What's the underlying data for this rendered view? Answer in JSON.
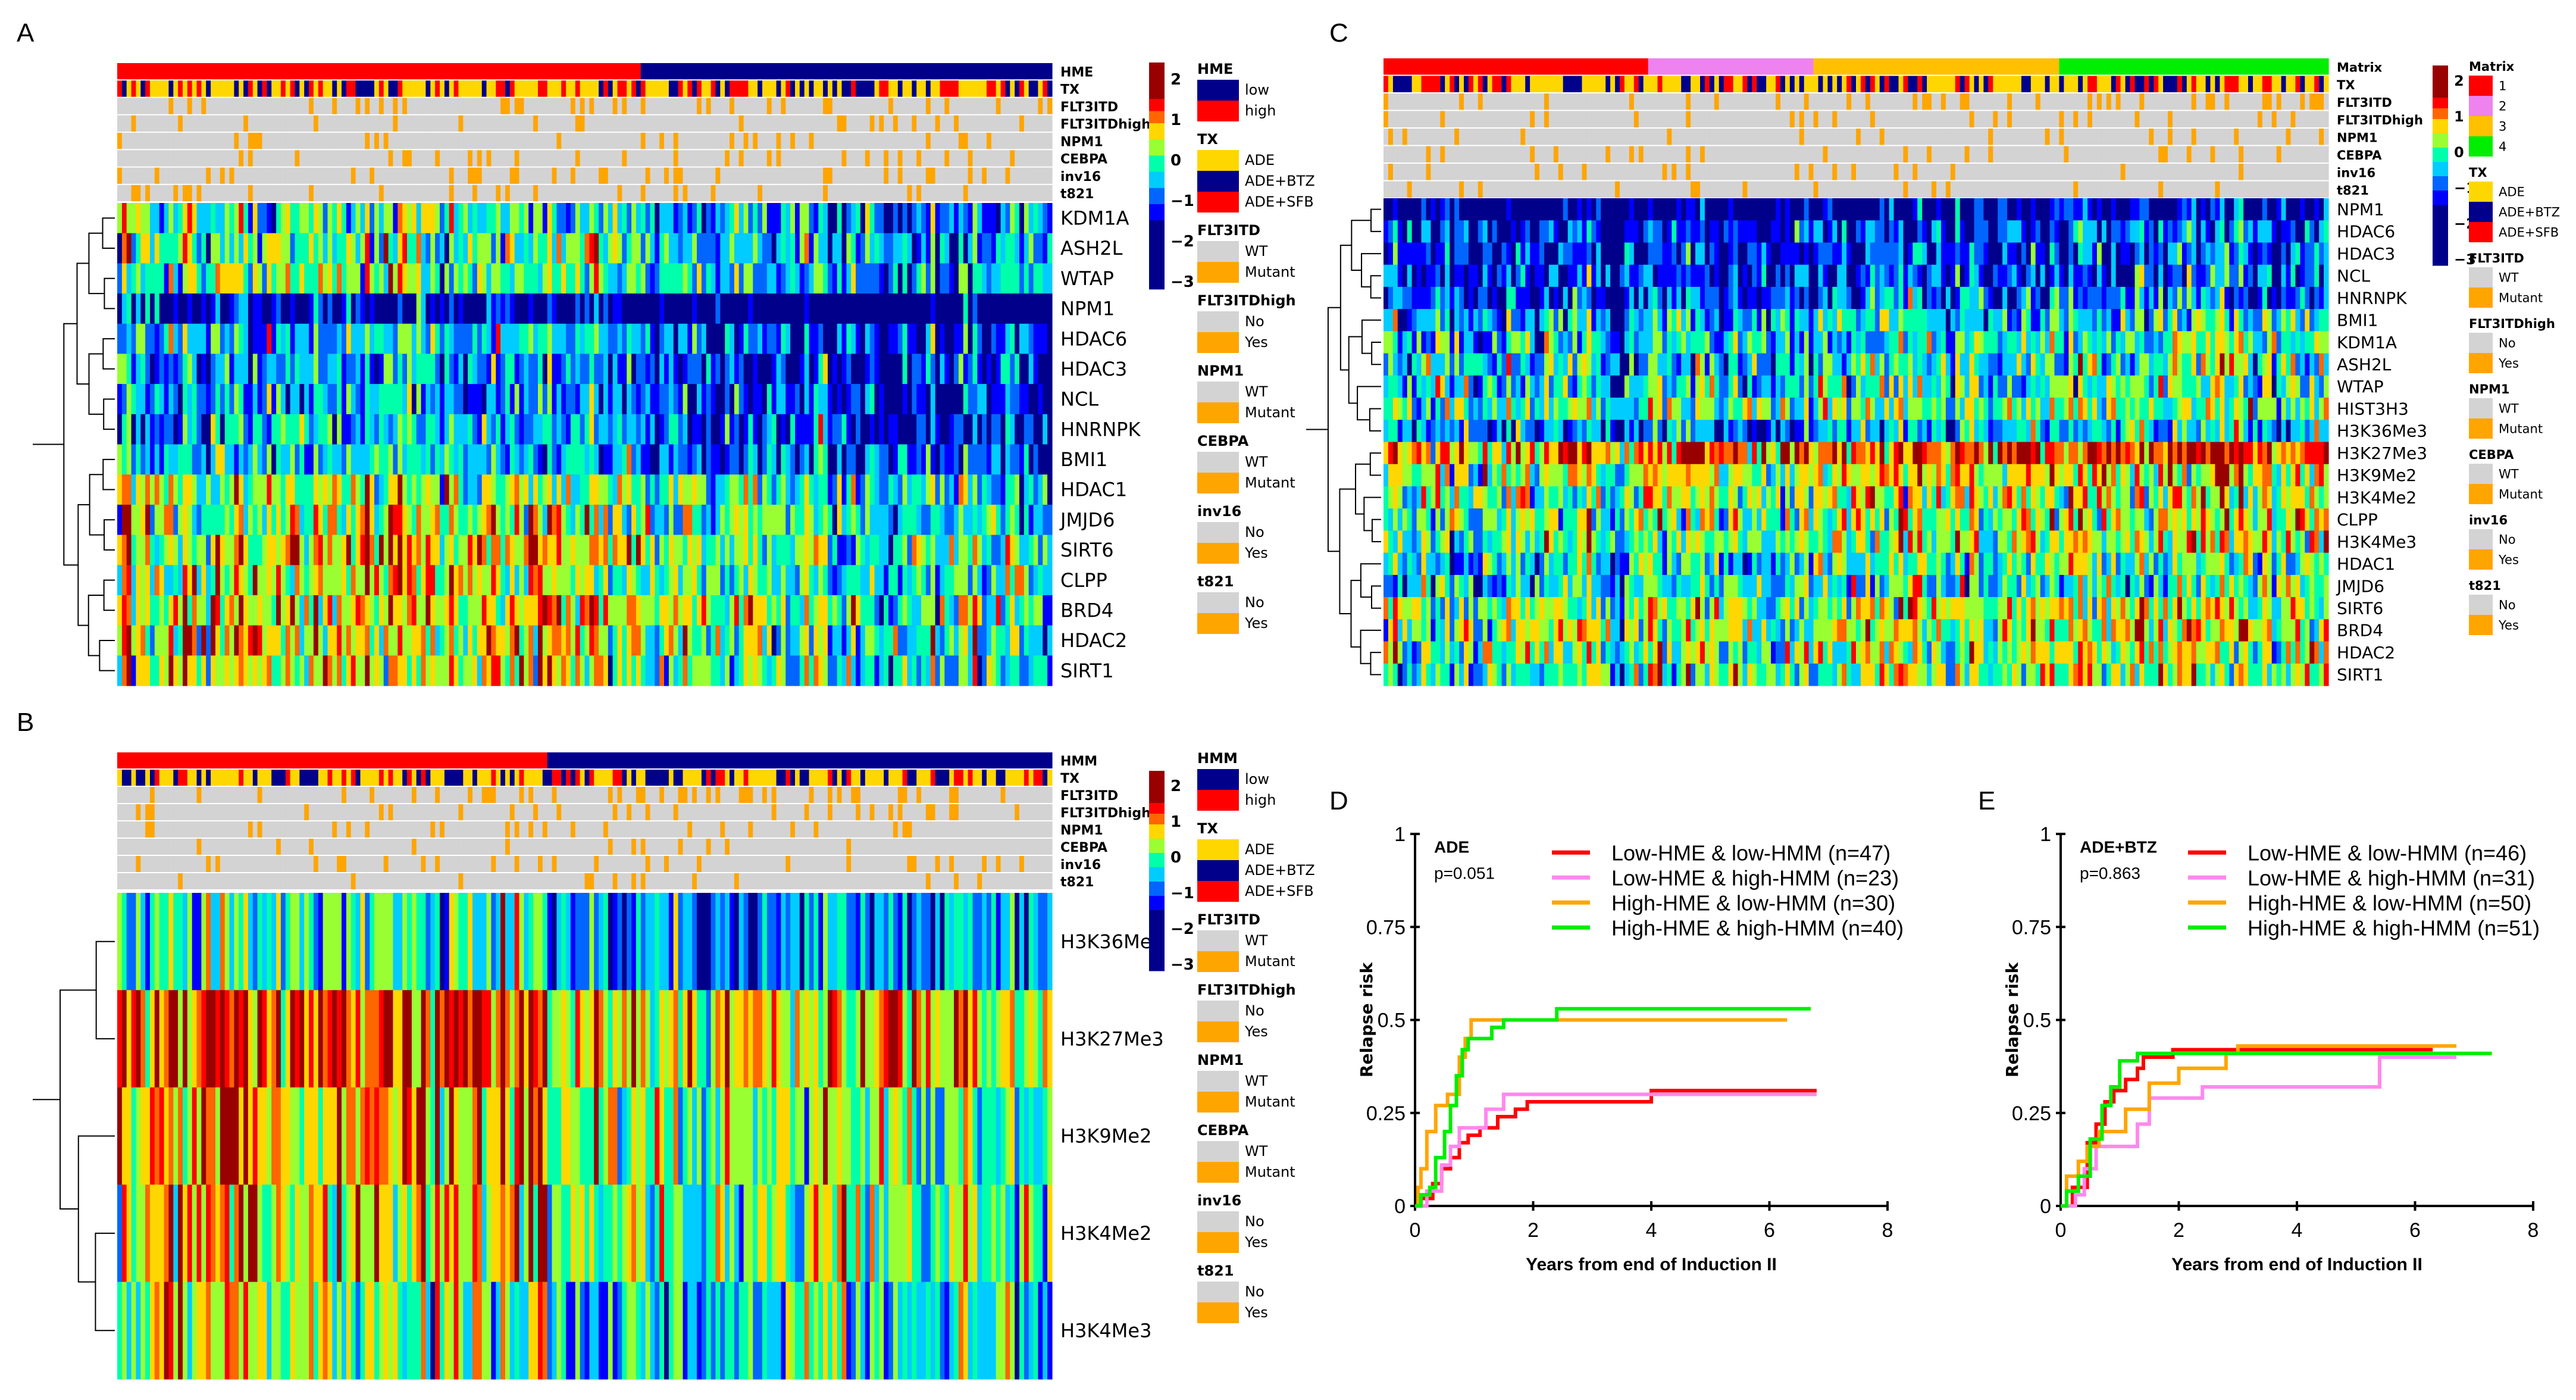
{
  "panels": {
    "A": "A",
    "B": "B",
    "C": "C",
    "D": "D",
    "E": "E"
  },
  "heatmap_colors": [
    "#00008B",
    "#0000FF",
    "#0066FF",
    "#00CCFF",
    "#00FFAA",
    "#99FF33",
    "#FFD700",
    "#FF6600",
    "#FF0000",
    "#990000"
  ],
  "colorscale_ticks": [
    "2",
    "1",
    "0",
    "−1",
    "−2",
    "−3"
  ],
  "chart_data": [
    {
      "type": "heatmap",
      "panel": "A",
      "tracks": [
        "HME",
        "TX",
        "FLT3ITD",
        "FLT3ITDhigh",
        "NPM1",
        "CEBPA",
        "inv16",
        "t821"
      ],
      "group_fraction_high": 0.56,
      "rows": [
        "KDM1A",
        "ASH2L",
        "WTAP",
        "NPM1",
        "HDAC6",
        "HDAC3",
        "NCL",
        "HNRNPK",
        "BMI1",
        "HDAC1",
        "JMJD6",
        "SIRT6",
        "CLPP",
        "BRD4",
        "HDAC2",
        "SIRT1"
      ],
      "row_mean": [
        -0.4,
        -0.3,
        -0.3,
        -1.8,
        -0.8,
        -1.0,
        -1.0,
        -0.9,
        -0.7,
        0.0,
        0.0,
        0.3,
        0.1,
        0.3,
        0.2,
        0.1
      ],
      "legend": [
        {
          "title": "HME",
          "items": [
            {
              "label": "low",
              "color": "#00008B"
            },
            {
              "label": "high",
              "color": "#FF0000"
            }
          ]
        },
        {
          "title": "TX",
          "items": [
            {
              "label": "ADE",
              "color": "#FFD700"
            },
            {
              "label": "ADE+BTZ",
              "color": "#00008B"
            },
            {
              "label": "ADE+SFB",
              "color": "#FF0000"
            }
          ]
        },
        {
          "title": "FLT3ITD",
          "items": [
            {
              "label": "WT",
              "color": "#D3D3D3"
            },
            {
              "label": "Mutant",
              "color": "#FFA500"
            }
          ]
        },
        {
          "title": "FLT3ITDhigh",
          "items": [
            {
              "label": "No",
              "color": "#D3D3D3"
            },
            {
              "label": "Yes",
              "color": "#FFA500"
            }
          ]
        },
        {
          "title": "NPM1",
          "items": [
            {
              "label": "WT",
              "color": "#D3D3D3"
            },
            {
              "label": "Mutant",
              "color": "#FFA500"
            }
          ]
        },
        {
          "title": "CEBPA",
          "items": [
            {
              "label": "WT",
              "color": "#D3D3D3"
            },
            {
              "label": "Mutant",
              "color": "#FFA500"
            }
          ]
        },
        {
          "title": "inv16",
          "items": [
            {
              "label": "No",
              "color": "#D3D3D3"
            },
            {
              "label": "Yes",
              "color": "#FFA500"
            }
          ]
        },
        {
          "title": "t821",
          "items": [
            {
              "label": "No",
              "color": "#D3D3D3"
            },
            {
              "label": "Yes",
              "color": "#FFA500"
            }
          ]
        }
      ]
    },
    {
      "type": "heatmap",
      "panel": "B",
      "tracks": [
        "HMM",
        "TX",
        "FLT3ITD",
        "FLT3ITDhigh",
        "NPM1",
        "CEBPA",
        "inv16",
        "t821"
      ],
      "group_fraction_high": 0.46,
      "rows": [
        "H3K36Me3",
        "H3K27Me3",
        "H3K9Me2",
        "H3K4Me2",
        "H3K4Me3"
      ],
      "row_mean": [
        -0.5,
        1.0,
        0.5,
        0.5,
        0.0
      ],
      "legend": [
        {
          "title": "HMM",
          "items": [
            {
              "label": "low",
              "color": "#00008B"
            },
            {
              "label": "high",
              "color": "#FF0000"
            }
          ]
        },
        {
          "title": "TX",
          "items": [
            {
              "label": "ADE",
              "color": "#FFD700"
            },
            {
              "label": "ADE+BTZ",
              "color": "#00008B"
            },
            {
              "label": "ADE+SFB",
              "color": "#FF0000"
            }
          ]
        },
        {
          "title": "FLT3ITD",
          "items": [
            {
              "label": "WT",
              "color": "#D3D3D3"
            },
            {
              "label": "Mutant",
              "color": "#FFA500"
            }
          ]
        },
        {
          "title": "FLT3ITDhigh",
          "items": [
            {
              "label": "No",
              "color": "#D3D3D3"
            },
            {
              "label": "Yes",
              "color": "#FFA500"
            }
          ]
        },
        {
          "title": "NPM1",
          "items": [
            {
              "label": "WT",
              "color": "#D3D3D3"
            },
            {
              "label": "Mutant",
              "color": "#FFA500"
            }
          ]
        },
        {
          "title": "CEBPA",
          "items": [
            {
              "label": "WT",
              "color": "#D3D3D3"
            },
            {
              "label": "Mutant",
              "color": "#FFA500"
            }
          ]
        },
        {
          "title": "inv16",
          "items": [
            {
              "label": "No",
              "color": "#D3D3D3"
            },
            {
              "label": "Yes",
              "color": "#FFA500"
            }
          ]
        },
        {
          "title": "t821",
          "items": [
            {
              "label": "No",
              "color": "#D3D3D3"
            },
            {
              "label": "Yes",
              "color": "#FFA500"
            }
          ]
        }
      ]
    },
    {
      "type": "heatmap",
      "panel": "C",
      "tracks": [
        "Matrix",
        "TX",
        "FLT3ITD",
        "FLT3ITDhigh",
        "NPM1",
        "CEBPA",
        "inv16",
        "t821"
      ],
      "matrix_group_fractions": [
        0.28,
        0.17,
        0.26,
        0.29
      ],
      "rows": [
        "NPM1",
        "HDAC6",
        "HDAC3",
        "NCL",
        "HNRNPK",
        "BMI1",
        "KDM1A",
        "ASH2L",
        "WTAP",
        "HIST3H3",
        "H3K36Me3",
        "H3K27Me3",
        "H3K9Me2",
        "H3K4Me2",
        "CLPP",
        "H3K4Me3",
        "HDAC1",
        "JMJD6",
        "SIRT6",
        "BRD4",
        "HDAC2",
        "SIRT1"
      ],
      "row_mean": [
        -1.8,
        -1.2,
        -1.2,
        -1.1,
        -1.0,
        -0.5,
        -0.3,
        -0.3,
        -0.3,
        0.0,
        -0.6,
        1.0,
        0.4,
        0.3,
        0.2,
        0.1,
        -0.2,
        -0.3,
        0.3,
        0.3,
        0.2,
        0.1
      ],
      "legend": [
        {
          "title": "Matrix",
          "items": [
            {
              "label": "1",
              "color": "#FF0000"
            },
            {
              "label": "2",
              "color": "#EE82EE"
            },
            {
              "label": "3",
              "color": "#FFC000"
            },
            {
              "label": "4",
              "color": "#00EE00"
            }
          ]
        },
        {
          "title": "TX",
          "items": [
            {
              "label": "ADE",
              "color": "#FFD700"
            },
            {
              "label": "ADE+BTZ",
              "color": "#00008B"
            },
            {
              "label": "ADE+SFB",
              "color": "#FF0000"
            }
          ]
        },
        {
          "title": "FLT3ITD",
          "items": [
            {
              "label": "WT",
              "color": "#D3D3D3"
            },
            {
              "label": "Mutant",
              "color": "#FFA500"
            }
          ]
        },
        {
          "title": "FLT3ITDhigh",
          "items": [
            {
              "label": "No",
              "color": "#D3D3D3"
            },
            {
              "label": "Yes",
              "color": "#FFA500"
            }
          ]
        },
        {
          "title": "NPM1",
          "items": [
            {
              "label": "WT",
              "color": "#D3D3D3"
            },
            {
              "label": "Mutant",
              "color": "#FFA500"
            }
          ]
        },
        {
          "title": "CEBPA",
          "items": [
            {
              "label": "WT",
              "color": "#D3D3D3"
            },
            {
              "label": "Mutant",
              "color": "#FFA500"
            }
          ]
        },
        {
          "title": "inv16",
          "items": [
            {
              "label": "No",
              "color": "#D3D3D3"
            },
            {
              "label": "Yes",
              "color": "#FFA500"
            }
          ]
        },
        {
          "title": "t821",
          "items": [
            {
              "label": "No",
              "color": "#D3D3D3"
            },
            {
              "label": "Yes",
              "color": "#FFA500"
            }
          ]
        }
      ]
    },
    {
      "type": "line",
      "panel": "D",
      "subtitle": "ADE",
      "pvalue": "p=0.051",
      "xlabel": "Years from end of Induction II",
      "ylabel": "Relapse risk",
      "xlim": [
        0,
        8
      ],
      "ylim": [
        0,
        1
      ],
      "xticks": [
        "0",
        "2",
        "4",
        "6",
        "8"
      ],
      "yticks": [
        "0",
        "0.25",
        "0.5",
        "0.75",
        "1"
      ],
      "series": [
        {
          "name": "Low-HME & low-HMM (n=47)",
          "color": "#FF0000",
          "points": [
            [
              0,
              0
            ],
            [
              0.1,
              0.02
            ],
            [
              0.3,
              0.06
            ],
            [
              0.45,
              0.1
            ],
            [
              0.6,
              0.13
            ],
            [
              0.75,
              0.17
            ],
            [
              0.9,
              0.19
            ],
            [
              1.1,
              0.21
            ],
            [
              1.4,
              0.24
            ],
            [
              1.7,
              0.26
            ],
            [
              1.9,
              0.28
            ],
            [
              4.0,
              0.31
            ],
            [
              6.8,
              0.31
            ]
          ]
        },
        {
          "name": "Low-HME & high-HMM (n=23)",
          "color": "#FF88EE",
          "points": [
            [
              0,
              0
            ],
            [
              0.2,
              0.04
            ],
            [
              0.45,
              0.11
            ],
            [
              0.6,
              0.16
            ],
            [
              0.75,
              0.21
            ],
            [
              1.2,
              0.26
            ],
            [
              1.5,
              0.3
            ],
            [
              6.8,
              0.3
            ]
          ]
        },
        {
          "name": "High-HME & low-HMM (n=30)",
          "color": "#FFA500",
          "points": [
            [
              0,
              0
            ],
            [
              0.05,
              0.05
            ],
            [
              0.1,
              0.1
            ],
            [
              0.2,
              0.2
            ],
            [
              0.35,
              0.27
            ],
            [
              0.55,
              0.3
            ],
            [
              0.75,
              0.4
            ],
            [
              0.85,
              0.45
            ],
            [
              0.95,
              0.5
            ],
            [
              6.3,
              0.5
            ]
          ]
        },
        {
          "name": "High-HME & high-HMM (n=40)",
          "color": "#00EE00",
          "points": [
            [
              0,
              0
            ],
            [
              0.1,
              0.03
            ],
            [
              0.25,
              0.05
            ],
            [
              0.35,
              0.13
            ],
            [
              0.5,
              0.2
            ],
            [
              0.6,
              0.27
            ],
            [
              0.7,
              0.35
            ],
            [
              0.8,
              0.42
            ],
            [
              0.9,
              0.45
            ],
            [
              1.3,
              0.48
            ],
            [
              1.5,
              0.5
            ],
            [
              2.4,
              0.53
            ],
            [
              6.7,
              0.53
            ]
          ]
        }
      ]
    },
    {
      "type": "line",
      "panel": "E",
      "subtitle": "ADE+BTZ",
      "pvalue": "p=0.863",
      "xlabel": "Years from end of Induction II",
      "ylabel": "Relapse risk",
      "xlim": [
        0,
        8
      ],
      "ylim": [
        0,
        1
      ],
      "xticks": [
        "0",
        "2",
        "4",
        "6",
        "8"
      ],
      "yticks": [
        "0",
        "0.25",
        "0.5",
        "0.75",
        "1"
      ],
      "series": [
        {
          "name": "Low-HME & low-HMM (n=46)",
          "color": "#FF0000",
          "points": [
            [
              0,
              0
            ],
            [
              0.2,
              0.05
            ],
            [
              0.45,
              0.17
            ],
            [
              0.6,
              0.22
            ],
            [
              0.75,
              0.28
            ],
            [
              0.9,
              0.31
            ],
            [
              1.1,
              0.34
            ],
            [
              1.3,
              0.37
            ],
            [
              1.4,
              0.4
            ],
            [
              1.9,
              0.42
            ],
            [
              6.3,
              0.42
            ]
          ]
        },
        {
          "name": "Low-HME & high-HMM (n=31)",
          "color": "#FF88EE",
          "points": [
            [
              0,
              0
            ],
            [
              0.25,
              0.03
            ],
            [
              0.4,
              0.1
            ],
            [
              0.6,
              0.16
            ],
            [
              1.3,
              0.22
            ],
            [
              1.5,
              0.29
            ],
            [
              2.4,
              0.32
            ],
            [
              5.4,
              0.4
            ],
            [
              6.7,
              0.4
            ]
          ]
        },
        {
          "name": "High-HME & low-HMM (n=50)",
          "color": "#FFA500",
          "points": [
            [
              0,
              0
            ],
            [
              0.1,
              0.08
            ],
            [
              0.3,
              0.12
            ],
            [
              0.45,
              0.16
            ],
            [
              0.65,
              0.2
            ],
            [
              1.1,
              0.26
            ],
            [
              1.5,
              0.33
            ],
            [
              2.0,
              0.37
            ],
            [
              2.8,
              0.41
            ],
            [
              3.0,
              0.43
            ],
            [
              6.7,
              0.43
            ]
          ]
        },
        {
          "name": "High-HME & high-HMM (n=51)",
          "color": "#00EE00",
          "points": [
            [
              0,
              0
            ],
            [
              0.1,
              0.04
            ],
            [
              0.3,
              0.08
            ],
            [
              0.5,
              0.18
            ],
            [
              0.7,
              0.27
            ],
            [
              0.85,
              0.32
            ],
            [
              1.0,
              0.39
            ],
            [
              1.3,
              0.41
            ],
            [
              7.3,
              0.41
            ]
          ]
        }
      ]
    }
  ]
}
